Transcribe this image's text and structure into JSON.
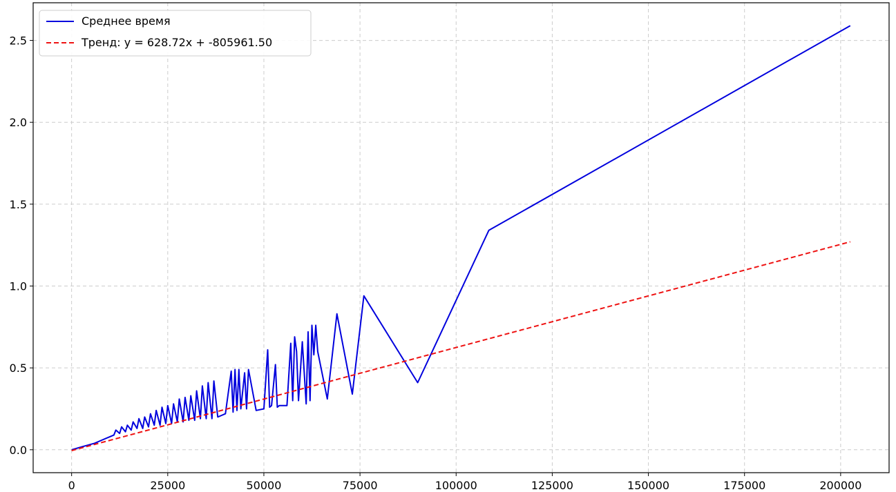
{
  "chart_data": {
    "type": "line",
    "title": "",
    "xlabel": "",
    "ylabel": "",
    "xlim": [
      -10000,
      212600
    ],
    "ylim": [
      -0.14,
      2.73
    ],
    "x_ticks": [
      0,
      25000,
      50000,
      75000,
      100000,
      125000,
      150000,
      175000,
      200000
    ],
    "y_ticks": [
      0.0,
      0.5,
      1.0,
      1.5,
      2.0,
      2.5
    ],
    "x_tick_labels": [
      "0",
      "25000",
      "50000",
      "75000",
      "100000",
      "125000",
      "150000",
      "175000",
      "200000"
    ],
    "y_tick_labels": [
      "0.0",
      "0.5",
      "1.0",
      "1.5",
      "2.0",
      "2.5"
    ],
    "grid": true,
    "legend_position": "top-left",
    "series": [
      {
        "name": "Среднее время",
        "style": "solid",
        "color": "#0000dd",
        "x": [
          0,
          3000,
          6000,
          8000,
          10000,
          11000,
          11500,
          12500,
          13000,
          14000,
          14500,
          15500,
          16000,
          17000,
          17500,
          18500,
          19000,
          20000,
          20500,
          21500,
          22000,
          23000,
          23500,
          24500,
          25000,
          26000,
          26500,
          27500,
          28000,
          29000,
          29500,
          30500,
          31000,
          32000,
          32500,
          33500,
          34000,
          35000,
          35500,
          36500,
          37000,
          38000,
          39000,
          40000,
          41500,
          42000,
          42500,
          43000,
          43500,
          44000,
          45000,
          45500,
          46000,
          48000,
          50000,
          51000,
          51500,
          52000,
          53000,
          53500,
          54000,
          56000,
          57000,
          57500,
          58000,
          58500,
          59000,
          60000,
          61000,
          61500,
          62000,
          62500,
          63000,
          63500,
          64000,
          66500,
          69000,
          73000,
          76000,
          90000,
          108500,
          202500
        ],
        "y": [
          0.0,
          0.02,
          0.04,
          0.06,
          0.08,
          0.09,
          0.12,
          0.1,
          0.14,
          0.11,
          0.15,
          0.12,
          0.17,
          0.13,
          0.19,
          0.13,
          0.2,
          0.14,
          0.22,
          0.15,
          0.24,
          0.15,
          0.26,
          0.16,
          0.27,
          0.16,
          0.28,
          0.17,
          0.31,
          0.17,
          0.32,
          0.18,
          0.33,
          0.18,
          0.36,
          0.19,
          0.39,
          0.19,
          0.41,
          0.19,
          0.42,
          0.2,
          0.21,
          0.22,
          0.48,
          0.23,
          0.49,
          0.24,
          0.49,
          0.25,
          0.47,
          0.25,
          0.49,
          0.24,
          0.25,
          0.61,
          0.26,
          0.27,
          0.52,
          0.26,
          0.27,
          0.27,
          0.65,
          0.3,
          0.69,
          0.6,
          0.3,
          0.66,
          0.28,
          0.72,
          0.3,
          0.76,
          0.58,
          0.76,
          0.6,
          0.31,
          0.83,
          0.34,
          0.94,
          0.41,
          1.34,
          2.59
        ]
      },
      {
        "name": "Тренд: y = 628.72x + -805961.50",
        "style": "dashed",
        "color": "#ee1111",
        "x": [
          0,
          202500
        ],
        "y": [
          -0.005,
          1.27
        ]
      }
    ]
  }
}
